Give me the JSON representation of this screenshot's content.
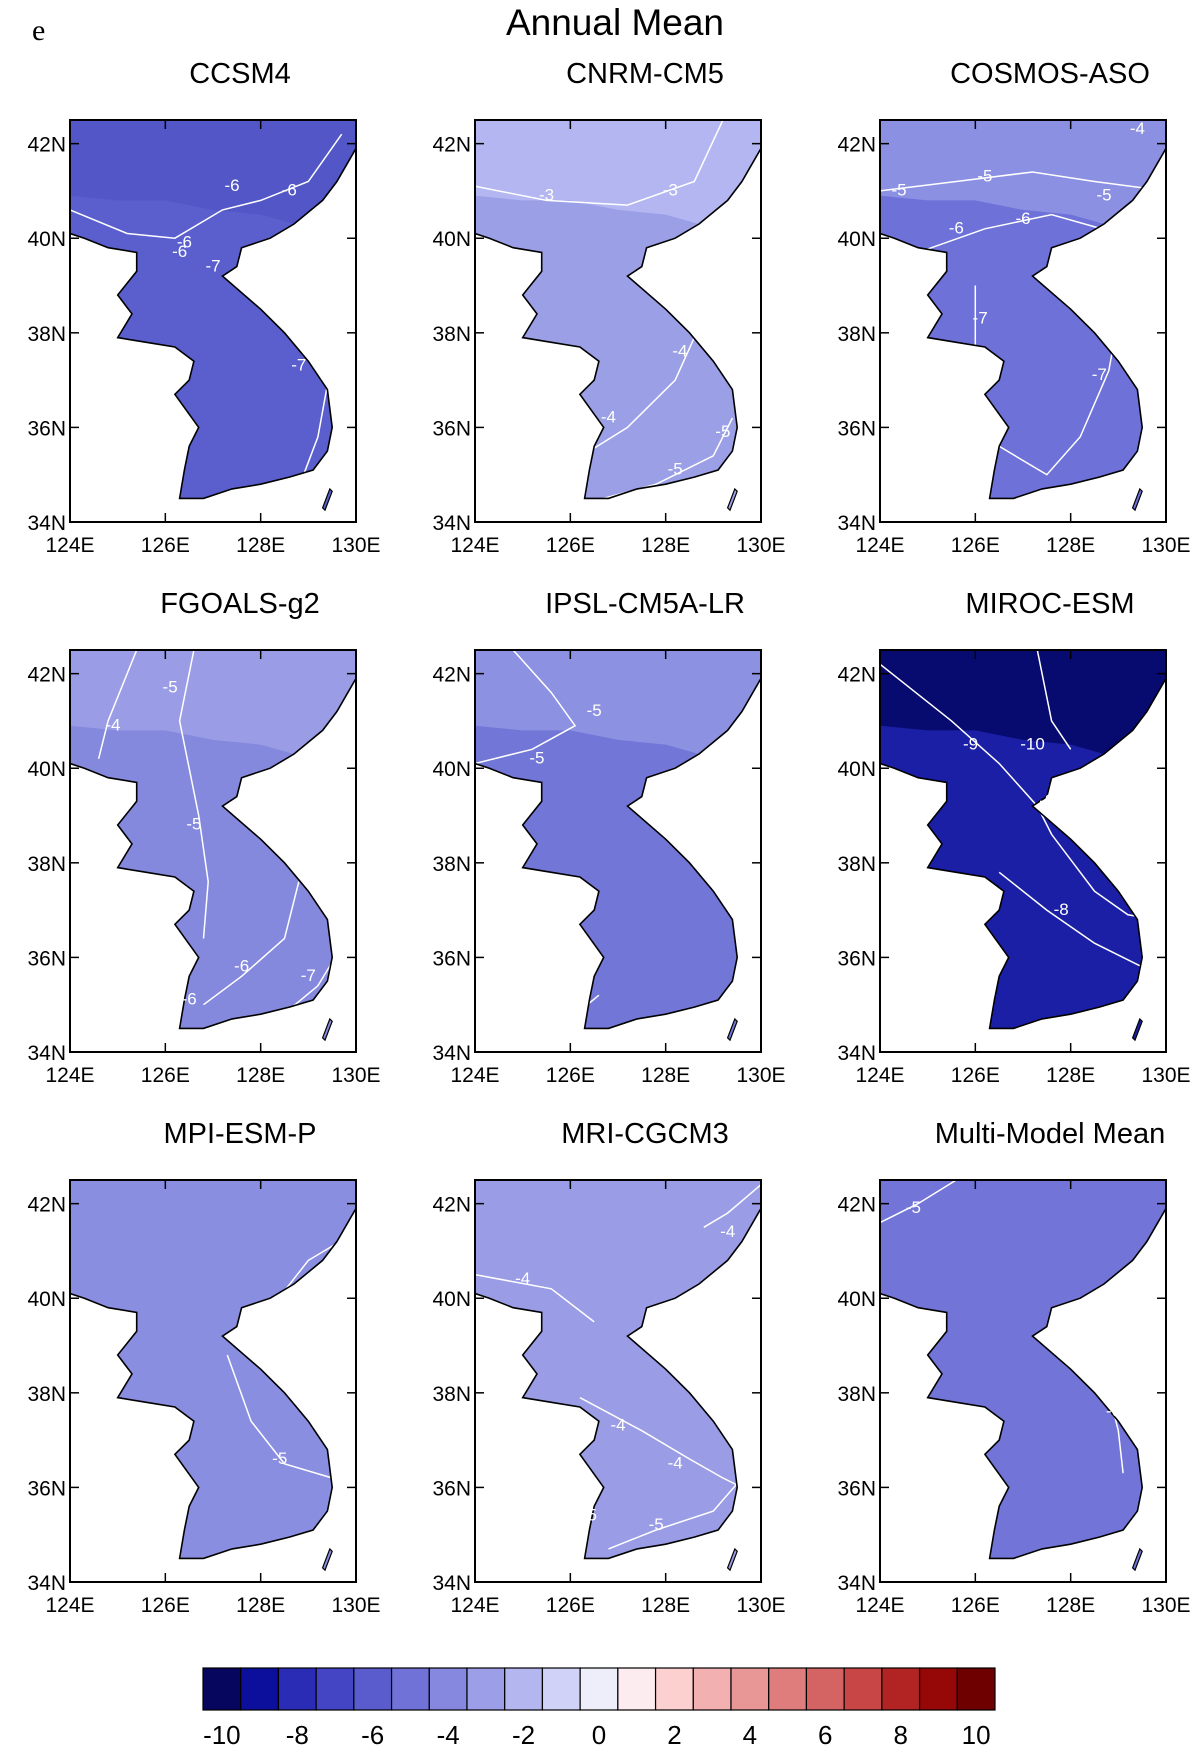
{
  "figure": {
    "panel_letter": "e",
    "title": "Annual Mean"
  },
  "axes": {
    "lon_ticks": [
      "124E",
      "126E",
      "128E",
      "130E"
    ],
    "lat_ticks": [
      "34N",
      "36N",
      "38N",
      "40N",
      "42N"
    ],
    "lon_range": [
      124,
      130
    ],
    "lat_range": [
      34,
      42.5
    ]
  },
  "colors": {
    "land_outline": "#000000",
    "contour_line": "#ffffff",
    "ocean": "#ffffff"
  },
  "chart_data": {
    "type": "map-contour",
    "variable": "annual mean anomaly",
    "panels": [
      {
        "model": "CCSM4",
        "fill": "#5a5fcd",
        "north_fill": "#5256c6",
        "contour_labels": [
          "-6",
          "-6",
          "-6",
          "-6",
          "-7",
          "-7"
        ]
      },
      {
        "model": "CNRM-CM5",
        "fill": "#9b9fe6",
        "north_fill": "#b3b6f0",
        "contour_labels": [
          "-3",
          "-3",
          "-4",
          "-4",
          "-5",
          "-5"
        ]
      },
      {
        "model": "COSMOS-ASO",
        "fill": "#6d71d8",
        "north_fill": "#8c90e2",
        "contour_labels": [
          "-4",
          "-5",
          "-5",
          "-5",
          "-6",
          "-6",
          "-7",
          "-7"
        ]
      },
      {
        "model": "FGOALS-g2",
        "fill": "#8589dd",
        "north_fill": "#9a9de5",
        "contour_labels": [
          "-4",
          "-5",
          "-5",
          "-6",
          "-6",
          "-7"
        ]
      },
      {
        "model": "IPSL-CM5A-LR",
        "fill": "#7276d7",
        "north_fill": "#8d91e2",
        "contour_labels": [
          "-5",
          "-5"
        ]
      },
      {
        "model": "MIROC-ESM",
        "fill": "#1b1fa5",
        "north_fill": "#070b70",
        "contour_labels": [
          "-9",
          "-9",
          "-9",
          "-10",
          "-10",
          "-8"
        ]
      },
      {
        "model": "MPI-ESM-P",
        "fill": "#8a8ee0",
        "north_fill": "#8a8ee0",
        "contour_labels": [
          "-5",
          "-5",
          "-5"
        ]
      },
      {
        "model": "MRI-CGCM3",
        "fill": "#9a9de6",
        "north_fill": "#9a9de6",
        "contour_labels": [
          "-4",
          "-4",
          "-4",
          "-4",
          "-5",
          "-5"
        ]
      },
      {
        "model": "Multi-Model Mean",
        "fill": "#7275d7",
        "north_fill": "#7275d7",
        "contour_labels": [
          "-5",
          "-6"
        ]
      }
    ],
    "colorbar": {
      "labels": [
        "-10",
        "-8",
        "-6",
        "-4",
        "-2",
        "0",
        "2",
        "4",
        "6",
        "8",
        "10"
      ],
      "colors": [
        "#06065e",
        "#0c0e9c",
        "#2a2cb5",
        "#4345c4",
        "#5a5cce",
        "#7072d7",
        "#8688df",
        "#9c9ee7",
        "#b4b6ef",
        "#d1d2f7",
        "#eeeefb",
        "#fcecf0",
        "#fdd0d0",
        "#f2b0b0",
        "#e89696",
        "#df7d7d",
        "#d46464",
        "#c84646",
        "#b22424",
        "#960808",
        "#6e0000"
      ]
    }
  }
}
